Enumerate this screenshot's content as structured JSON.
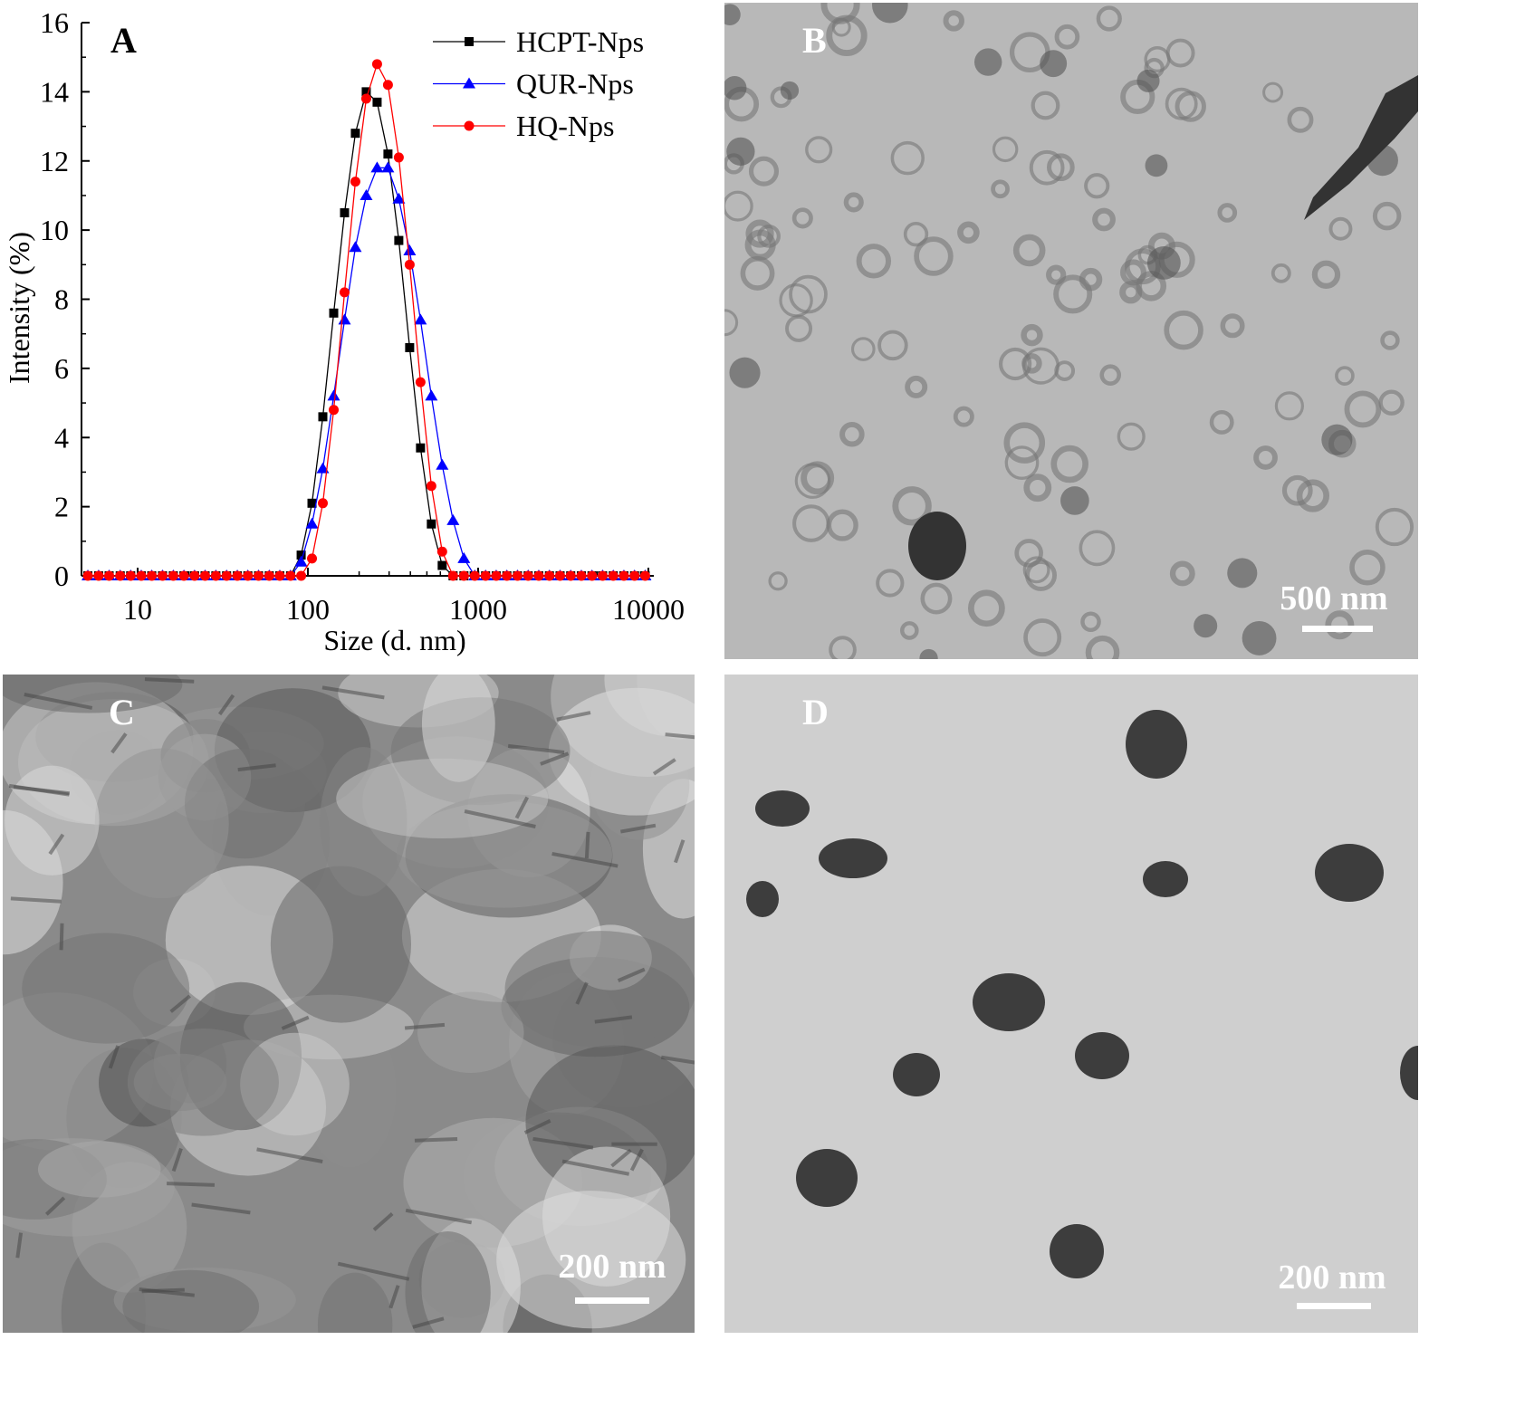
{
  "chart_data": {
    "type": "line",
    "panel_label": "A",
    "xlabel": "Size (d. nm)",
    "ylabel": "Intensity (%)",
    "xscale": "log",
    "xlim": [
      4.8,
      10500
    ],
    "ylim": [
      0,
      16
    ],
    "xticks": [
      10,
      100,
      1000,
      10000
    ],
    "xtick_labels": [
      "10",
      "100",
      "1000",
      "10000"
    ],
    "yticks": [
      0,
      2,
      4,
      6,
      8,
      10,
      12,
      14,
      16
    ],
    "ytick_labels": [
      "0",
      "2",
      "4",
      "6",
      "8",
      "10",
      "12",
      "14",
      "16"
    ],
    "grid": false,
    "legend_position": "top-right",
    "x": [
      5.1,
      5.9,
      6.8,
      7.9,
      9.1,
      10.5,
      12.1,
      14.0,
      16.2,
      18.7,
      21.6,
      24.9,
      28.8,
      33.3,
      38.5,
      44.4,
      51.3,
      59.3,
      68.4,
      79.1,
      91.3,
      105.7,
      122.4,
      141.8,
      164.2,
      190.1,
      220.2,
      255,
      295.3,
      342,
      396.1,
      458.7,
      531.2,
      615.1,
      712.4,
      825,
      955.4,
      1106,
      1277,
      1475,
      1703,
      1967,
      2271,
      2623,
      3029,
      3497,
      4039,
      4664,
      5385,
      6219,
      7181,
      8292,
      9575
    ],
    "series": [
      {
        "name": "HCPT-Nps",
        "color": "#000000",
        "marker": "square",
        "values": [
          0,
          0,
          0,
          0,
          0,
          0,
          0,
          0,
          0,
          0,
          0,
          0,
          0,
          0,
          0,
          0,
          0,
          0,
          0,
          0,
          0.6,
          2.1,
          4.6,
          7.6,
          10.5,
          12.8,
          14.0,
          13.7,
          12.2,
          9.7,
          6.6,
          3.7,
          1.5,
          0.3,
          0,
          0,
          0,
          0,
          0,
          0,
          0,
          0,
          0,
          0,
          0,
          0,
          0,
          0,
          0,
          0,
          0,
          0,
          0
        ]
      },
      {
        "name": "QUR-Nps",
        "color": "#0000ff",
        "marker": "triangle",
        "values": [
          0,
          0,
          0,
          0,
          0,
          0,
          0,
          0,
          0,
          0,
          0,
          0,
          0,
          0,
          0,
          0,
          0,
          0,
          0,
          0,
          0.4,
          1.5,
          3.1,
          5.2,
          7.4,
          9.5,
          11.0,
          11.8,
          11.8,
          10.9,
          9.4,
          7.4,
          5.2,
          3.2,
          1.6,
          0.5,
          0,
          0,
          0,
          0,
          0,
          0,
          0,
          0,
          0,
          0,
          0,
          0,
          0,
          0,
          0,
          0,
          0
        ]
      },
      {
        "name": "HQ-Nps",
        "color": "#ff0000",
        "marker": "circle",
        "values": [
          0,
          0,
          0,
          0,
          0,
          0,
          0,
          0,
          0,
          0,
          0,
          0,
          0,
          0,
          0,
          0,
          0,
          0,
          0,
          0,
          0,
          0.5,
          2.1,
          4.8,
          8.2,
          11.4,
          13.8,
          14.8,
          14.2,
          12.1,
          9.0,
          5.6,
          2.6,
          0.7,
          0,
          0,
          0,
          0,
          0,
          0,
          0,
          0,
          0,
          0,
          0,
          0,
          0,
          0,
          0,
          0,
          0,
          0,
          0
        ]
      }
    ]
  },
  "panels": {
    "b": {
      "label": "B",
      "scale": "500 nm"
    },
    "c": {
      "label": "C",
      "scale": "200 nm"
    },
    "d": {
      "label": "D",
      "scale": "200 nm"
    }
  }
}
